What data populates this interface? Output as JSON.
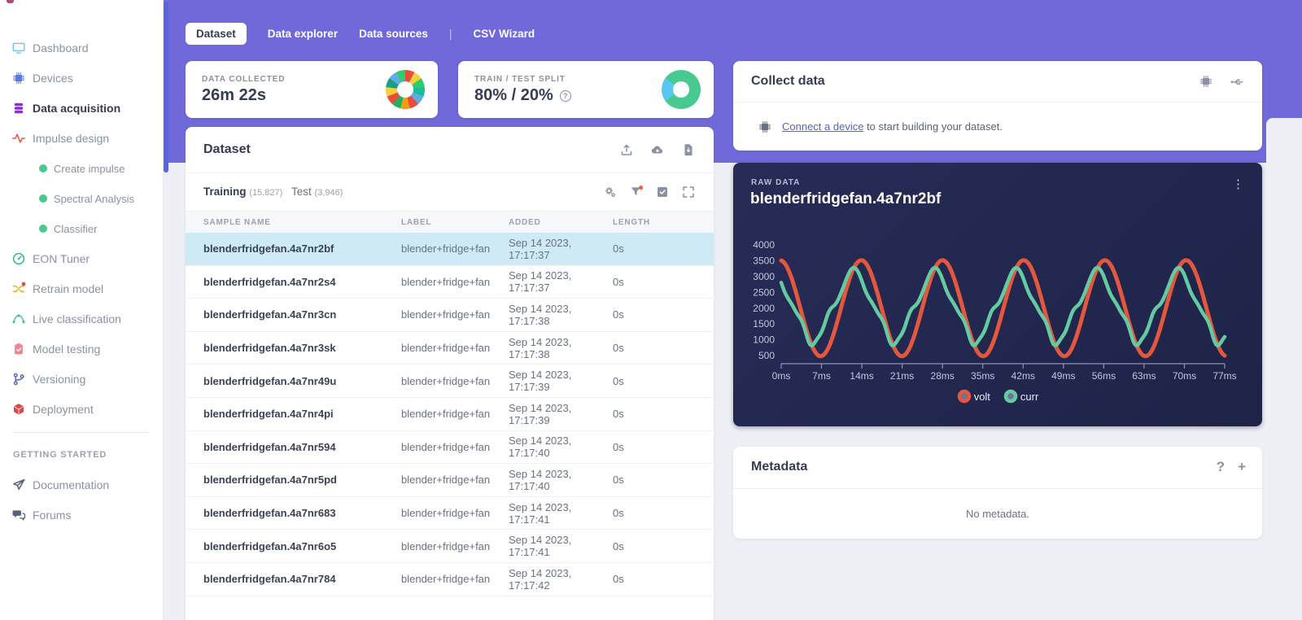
{
  "sidebar": {
    "items": [
      {
        "label": "Dashboard",
        "icon": "monitor-icon",
        "color": "#7cc5e8"
      },
      {
        "label": "Devices",
        "icon": "chip-icon",
        "color": "#5b79e3"
      },
      {
        "label": "Data acquisition",
        "icon": "database-icon",
        "color": "#8a2fd6",
        "active": true
      },
      {
        "label": "Impulse design",
        "icon": "pulse-icon",
        "color": "#e2573d"
      },
      {
        "label": "Create impulse",
        "icon": "dot-icon",
        "color": "#47c98f",
        "sub": true
      },
      {
        "label": "Spectral Analysis",
        "icon": "dot-icon",
        "color": "#47c98f",
        "sub": true
      },
      {
        "label": "Classifier",
        "icon": "dot-icon",
        "color": "#47c98f",
        "sub": true
      },
      {
        "label": "EON Tuner",
        "icon": "gauge-icon",
        "color": "#2fb886"
      },
      {
        "label": "Retrain model",
        "icon": "shuffle-icon",
        "color": "#f0b429",
        "badge": "#e04f4f"
      },
      {
        "label": "Live classification",
        "icon": "signal-icon",
        "color": "#3dbd8c"
      },
      {
        "label": "Model testing",
        "icon": "clipboard-icon",
        "color": "#ee8596"
      },
      {
        "label": "Versioning",
        "icon": "branch-icon",
        "color": "#5b67c7"
      },
      {
        "label": "Deployment",
        "icon": "cube-icon",
        "color": "#d94a4a"
      }
    ],
    "section_label": "GETTING STARTED",
    "secondary_items": [
      {
        "label": "Documentation",
        "icon": "send-icon",
        "color": "#59617a"
      },
      {
        "label": "Forums",
        "icon": "chat-icon",
        "color": "#59617a"
      }
    ]
  },
  "top_tabs": {
    "items": [
      {
        "label": "Dataset",
        "active": true
      },
      {
        "label": "Data explorer"
      },
      {
        "label": "Data sources"
      },
      {
        "label": "CSV Wizard",
        "separator_before": true
      }
    ]
  },
  "stats": {
    "data_collected": {
      "label": "DATA COLLECTED",
      "value": "26m 22s",
      "donut_colors": [
        "#e74c3c",
        "#f4d03f",
        "#2ecc71",
        "#1abc9c",
        "#5dade2",
        "#e74c3c",
        "#f39c12",
        "#27ae60",
        "#e74c3c",
        "#f4d03f",
        "#16a085",
        "#5dade2",
        "#2ecc71"
      ]
    },
    "train_test_split": {
      "label": "TRAIN / TEST SPLIT",
      "value": "80% / 20%",
      "train_pct": 80,
      "test_pct": 20,
      "train_color": "#47c98f",
      "test_color": "#59c7f0"
    }
  },
  "dataset_card": {
    "title": "Dataset",
    "header_icons": [
      "upload-icon",
      "cloud-icon",
      "file-download-icon"
    ],
    "tabs": {
      "training_label": "Training",
      "training_count": "(15,827)",
      "test_label": "Test",
      "test_count": "(3,946)"
    },
    "toolbar_icons": [
      "gears-icon",
      "filter-icon",
      "select-multiple-icon",
      "expand-icon"
    ],
    "columns": [
      "SAMPLE NAME",
      "LABEL",
      "ADDED",
      "LENGTH"
    ],
    "kebab_glyph": "⋮",
    "rows": [
      {
        "name": "blenderfridgefan.4a7nr2bf",
        "label": "blender+fridge+fan",
        "added": "Sep 14 2023, 17:17:37",
        "length": "0s",
        "selected": true
      },
      {
        "name": "blenderfridgefan.4a7nr2s4",
        "label": "blender+fridge+fan",
        "added": "Sep 14 2023, 17:17:37",
        "length": "0s"
      },
      {
        "name": "blenderfridgefan.4a7nr3cn",
        "label": "blender+fridge+fan",
        "added": "Sep 14 2023, 17:17:38",
        "length": "0s"
      },
      {
        "name": "blenderfridgefan.4a7nr3sk",
        "label": "blender+fridge+fan",
        "added": "Sep 14 2023, 17:17:38",
        "length": "0s"
      },
      {
        "name": "blenderfridgefan.4a7nr49u",
        "label": "blender+fridge+fan",
        "added": "Sep 14 2023, 17:17:39",
        "length": "0s"
      },
      {
        "name": "blenderfridgefan.4a7nr4pi",
        "label": "blender+fridge+fan",
        "added": "Sep 14 2023, 17:17:39",
        "length": "0s"
      },
      {
        "name": "blenderfridgefan.4a7nr594",
        "label": "blender+fridge+fan",
        "added": "Sep 14 2023, 17:17:40",
        "length": "0s"
      },
      {
        "name": "blenderfridgefan.4a7nr5pd",
        "label": "blender+fridge+fan",
        "added": "Sep 14 2023, 17:17:40",
        "length": "0s"
      },
      {
        "name": "blenderfridgefan.4a7nr683",
        "label": "blender+fridge+fan",
        "added": "Sep 14 2023, 17:17:41",
        "length": "0s"
      },
      {
        "name": "blenderfridgefan.4a7nr6o5",
        "label": "blender+fridge+fan",
        "added": "Sep 14 2023, 17:17:41",
        "length": "0s"
      },
      {
        "name": "blenderfridgefan.4a7nr784",
        "label": "blender+fridge+fan",
        "added": "Sep 14 2023, 17:17:42",
        "length": "0s"
      }
    ]
  },
  "collect_data": {
    "title": "Collect data",
    "header_icons": [
      "device-chip-icon",
      "usb-icon"
    ],
    "link_text": "Connect a device",
    "body_rest": " to start building your dataset."
  },
  "raw_data": {
    "caption": "RAW DATA",
    "title": "blenderfridgefan.4a7nr2bf",
    "kebab_glyph": "⋮"
  },
  "chart_data": {
    "type": "line",
    "title": "blenderfridgefan.4a7nr2bf",
    "xlabel": "",
    "ylabel": "",
    "x_tick_labels": [
      "0ms",
      "7ms",
      "14ms",
      "21ms",
      "28ms",
      "35ms",
      "42ms",
      "49ms",
      "56ms",
      "63ms",
      "70ms",
      "77ms"
    ],
    "x_tick_ms": [
      0,
      7,
      14,
      21,
      28,
      35,
      42,
      49,
      56,
      63,
      70,
      77
    ],
    "x_range_ms": [
      0,
      77
    ],
    "y_ticks": [
      4000,
      3500,
      3000,
      2500,
      2000,
      1500,
      1000,
      500
    ],
    "ylim": [
      500,
      4000
    ],
    "grid": false,
    "legend_position": "bottom",
    "legend": [
      {
        "name": "volt",
        "color": "#e2573d"
      },
      {
        "name": "curr",
        "color": "#63caa2"
      }
    ],
    "series": [
      {
        "name": "volt",
        "color": "#e2573d",
        "stroke_width": 5,
        "waveform": {
          "shape": "sine",
          "center": 2000,
          "amplitude": 1520,
          "period_ms": 14.1,
          "peak_at_ms": 13.9,
          "min": 480,
          "max": 3520
        }
      },
      {
        "name": "curr",
        "color": "#63caa2",
        "stroke_width": 4.5,
        "waveform": {
          "shape": "distorted-sine",
          "center": 2065,
          "amplitude": 1050,
          "period_ms": 14.1,
          "peak_at_ms": 12.6,
          "harmonic3": 170,
          "bottom_wobble": 70,
          "min": 845,
          "max": 3285
        }
      }
    ]
  },
  "metadata": {
    "title": "Metadata",
    "header_icons_text": [
      "?",
      "+"
    ],
    "empty_text": "No metadata."
  },
  "help": {
    "label": "?"
  }
}
